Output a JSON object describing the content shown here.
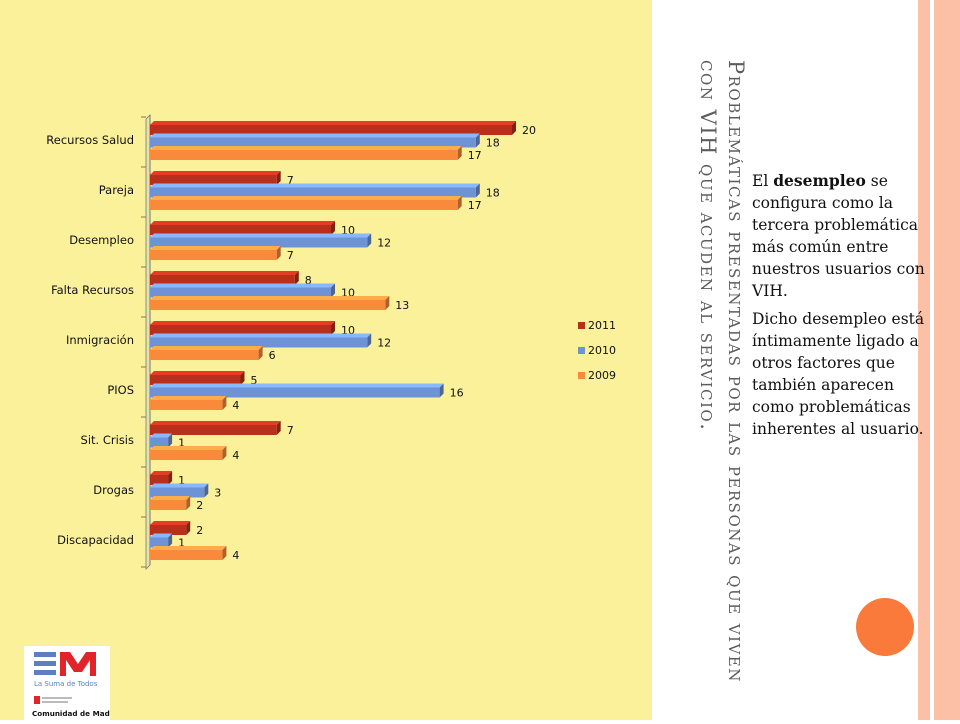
{
  "slide": {
    "title": "Problemáticas presentadas por las personas que viven con VIH que acuden al servicio.",
    "paragraph1_pre": "El ",
    "paragraph1_bold": "desempleo",
    "paragraph1_post": " se configura como la tercera problemática más común entre nuestros usuarios con VIH.",
    "paragraph2": "Dicho desempleo está íntimamente ligado a otros factores que también aparecen como problemáticas inherentes al usuario."
  },
  "logo": {
    "tagline": "La Suma de Todos",
    "org": "Comunidad de Madrid"
  },
  "colors": {
    "left_panel": "#fbf19a",
    "stripe": "#fbc0a6",
    "circle": "#f97a3a"
  },
  "chart_data": {
    "type": "bar",
    "orientation": "horizontal",
    "categories": [
      "Recursos Salud",
      "Pareja",
      "Desempleo",
      "Falta Recursos",
      "Inmigración",
      "PIOS",
      "Sit. Crisis",
      "Drogas",
      "Discapacidad"
    ],
    "series": [
      {
        "name": "2011",
        "color": "#b8301c",
        "values": [
          20,
          7,
          10,
          8,
          10,
          5,
          7,
          1,
          2
        ]
      },
      {
        "name": "2010",
        "color": "#6d93d6",
        "values": [
          18,
          18,
          12,
          10,
          12,
          16,
          1,
          3,
          1
        ]
      },
      {
        "name": "2009",
        "color": "#f98a3c",
        "values": [
          17,
          17,
          7,
          13,
          6,
          4,
          4,
          2,
          4
        ]
      }
    ],
    "xlim": [
      0,
      20
    ],
    "legend_position": "right",
    "grid": false
  }
}
